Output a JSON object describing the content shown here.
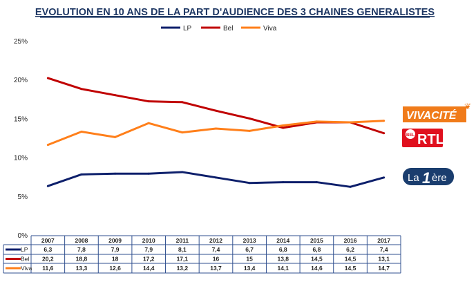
{
  "chart_data": {
    "type": "line",
    "title": "EVOLUTION EN 10 ANS DE LA PART D'AUDIENCE DES 3 CHAINES GENERALISTES",
    "categories": [
      "2007",
      "2008",
      "2009",
      "2010",
      "2011",
      "2012",
      "2013",
      "2014",
      "2015",
      "2016",
      "2017"
    ],
    "series": [
      {
        "name": "LP",
        "color": "#0d1f6b",
        "values": [
          6.3,
          7.8,
          7.9,
          7.9,
          8.1,
          7.4,
          6.7,
          6.8,
          6.8,
          6.2,
          7.4
        ],
        "labels": [
          "6,3",
          "7,8",
          "7,9",
          "7,9",
          "8,1",
          "7,4",
          "6,7",
          "6,8",
          "6,8",
          "6,2",
          "7,4"
        ]
      },
      {
        "name": "Bel",
        "color": "#c00000",
        "values": [
          20.2,
          18.8,
          18,
          17.2,
          17.1,
          16,
          15,
          13.8,
          14.5,
          14.5,
          13.1
        ],
        "labels": [
          "20,2",
          "18,8",
          "18",
          "17,2",
          "17,1",
          "16",
          "15",
          "13,8",
          "14,5",
          "14,5",
          "13,1"
        ]
      },
      {
        "name": "Viva",
        "color": "#ff7f1a",
        "values": [
          11.6,
          13.3,
          12.6,
          14.4,
          13.2,
          13.7,
          13.4,
          14.1,
          14.6,
          14.5,
          14.7
        ],
        "labels": [
          "11,6",
          "13,3",
          "12,6",
          "14,4",
          "13,2",
          "13,7",
          "13,4",
          "14,1",
          "14,6",
          "14,5",
          "14,7"
        ]
      }
    ],
    "y_ticks": [
      "0%",
      "5%",
      "10%",
      "15%",
      "20%",
      "25%"
    ],
    "ylim": [
      0,
      25
    ],
    "grid": false,
    "legend": "top",
    "data_table": true
  },
  "logos": {
    "vivacite": "VIVACITÉ",
    "rtl": "RTL",
    "rtl_badge": "BEL",
    "la1ere_a": "La",
    "la1ere_b": "1",
    "la1ere_c": "ère"
  }
}
